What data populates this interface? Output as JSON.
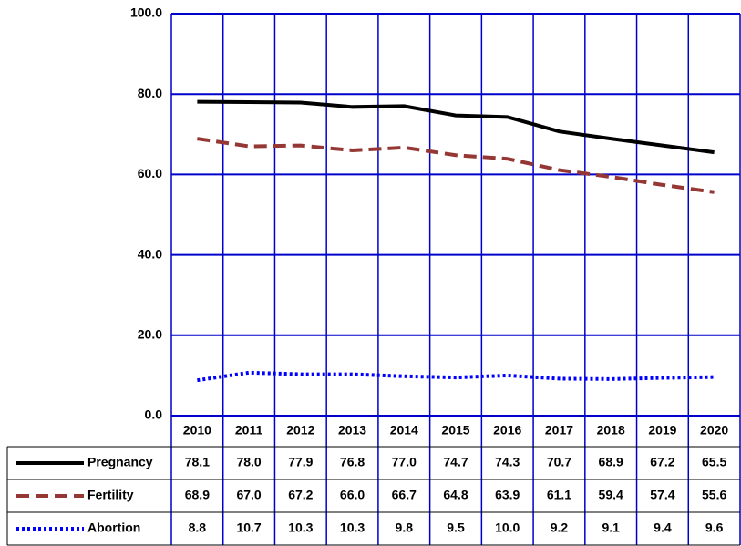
{
  "chart_data": {
    "type": "line",
    "categories": [
      "2010",
      "2011",
      "2012",
      "2013",
      "2014",
      "2015",
      "2016",
      "2017",
      "2018",
      "2019",
      "2020"
    ],
    "series": [
      {
        "name": "Pregnancy",
        "color": "#000000",
        "dash": "solid",
        "values": [
          78.1,
          78.0,
          77.9,
          76.8,
          77.0,
          74.7,
          74.3,
          70.7,
          68.9,
          67.2,
          65.5
        ],
        "value_labels": [
          "78.1",
          "78.0",
          "77.9",
          "76.8",
          "77.0",
          "74.7",
          "74.3",
          "70.7",
          "68.9",
          "67.2",
          "65.5"
        ]
      },
      {
        "name": "Fertility",
        "color": "#953735",
        "dash": "dashed",
        "values": [
          68.9,
          67.0,
          67.2,
          66.0,
          66.7,
          64.8,
          63.9,
          61.1,
          59.4,
          57.4,
          55.6
        ],
        "value_labels": [
          "68.9",
          "67.0",
          "67.2",
          "66.0",
          "66.7",
          "64.8",
          "63.9",
          "61.1",
          "59.4",
          "57.4",
          "55.6"
        ]
      },
      {
        "name": "Abortion",
        "color": "#0000ff",
        "dash": "dotted",
        "values": [
          8.8,
          10.7,
          10.3,
          10.3,
          9.8,
          9.5,
          10.0,
          9.2,
          9.1,
          9.4,
          9.6
        ],
        "value_labels": [
          "8.8",
          "10.7",
          "10.3",
          "10.3",
          "9.8",
          "9.5",
          "10.0",
          "9.2",
          "9.1",
          "9.4",
          "9.6"
        ]
      }
    ],
    "ylim": [
      0,
      100
    ],
    "yticks": [
      {
        "value": 0,
        "label": "0.0"
      },
      {
        "value": 20,
        "label": "20.0"
      },
      {
        "value": 40,
        "label": "40.0"
      },
      {
        "value": 60,
        "label": "60.0"
      },
      {
        "value": 80,
        "label": "80.0"
      },
      {
        "value": 100,
        "label": "100.0"
      }
    ],
    "grid": true,
    "grid_color": "#0000cc"
  }
}
